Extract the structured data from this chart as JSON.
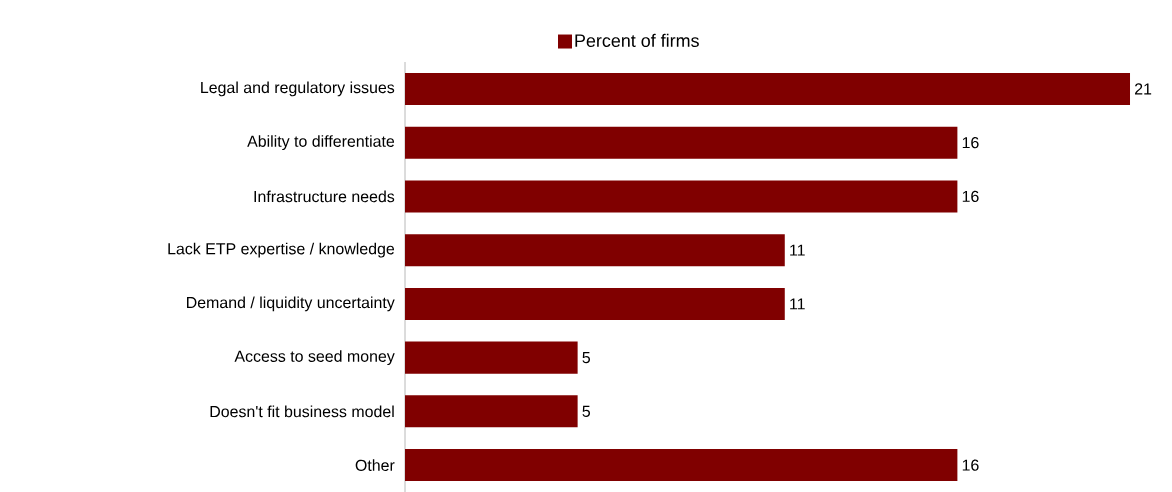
{
  "chart_data": {
    "type": "bar",
    "orientation": "horizontal",
    "data_labels": true,
    "legend": "top",
    "categories": [
      "Legal and regulatory issues",
      "Ability to differentiate",
      "Infrastructure needs",
      "Lack ETP expertise / knowledge",
      "Demand / liquidity uncertainty",
      "Access to seed money",
      "Doesn't fit business model",
      "Other"
    ],
    "series": [
      {
        "name": "Percent of firms",
        "color": "#800000",
        "values": [
          21,
          16,
          16,
          11,
          11,
          5,
          5,
          16
        ]
      }
    ]
  }
}
